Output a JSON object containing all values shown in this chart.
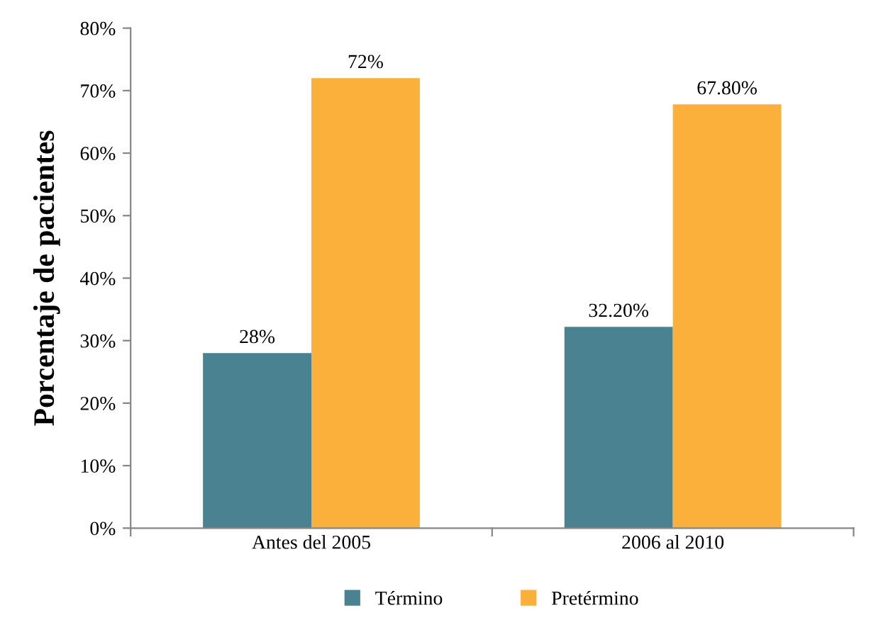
{
  "chart_data": {
    "type": "bar",
    "ylabel": "Porcentaje de pacientes",
    "categories": [
      "Antes del 2005",
      "2006 al 2010"
    ],
    "series": [
      {
        "name": "Término",
        "color": "#4a8291",
        "values": [
          28,
          32.2
        ],
        "value_labels": [
          "28%",
          "32.20%"
        ]
      },
      {
        "name": "Pretérmino",
        "color": "#fbb03b",
        "values": [
          72,
          67.8
        ],
        "value_labels": [
          "72%",
          "67.80%"
        ]
      }
    ],
    "ylim": [
      0,
      80
    ],
    "yticks": [
      {
        "value": 0,
        "label": "0%"
      },
      {
        "value": 10,
        "label": "10%"
      },
      {
        "value": 20,
        "label": "20%"
      },
      {
        "value": 30,
        "label": "30%"
      },
      {
        "value": 40,
        "label": "40%"
      },
      {
        "value": 50,
        "label": "50%"
      },
      {
        "value": 60,
        "label": "60%"
      },
      {
        "value": 70,
        "label": "70%"
      },
      {
        "value": 80,
        "label": "80%"
      }
    ],
    "grid": false,
    "legend": "bottom"
  }
}
